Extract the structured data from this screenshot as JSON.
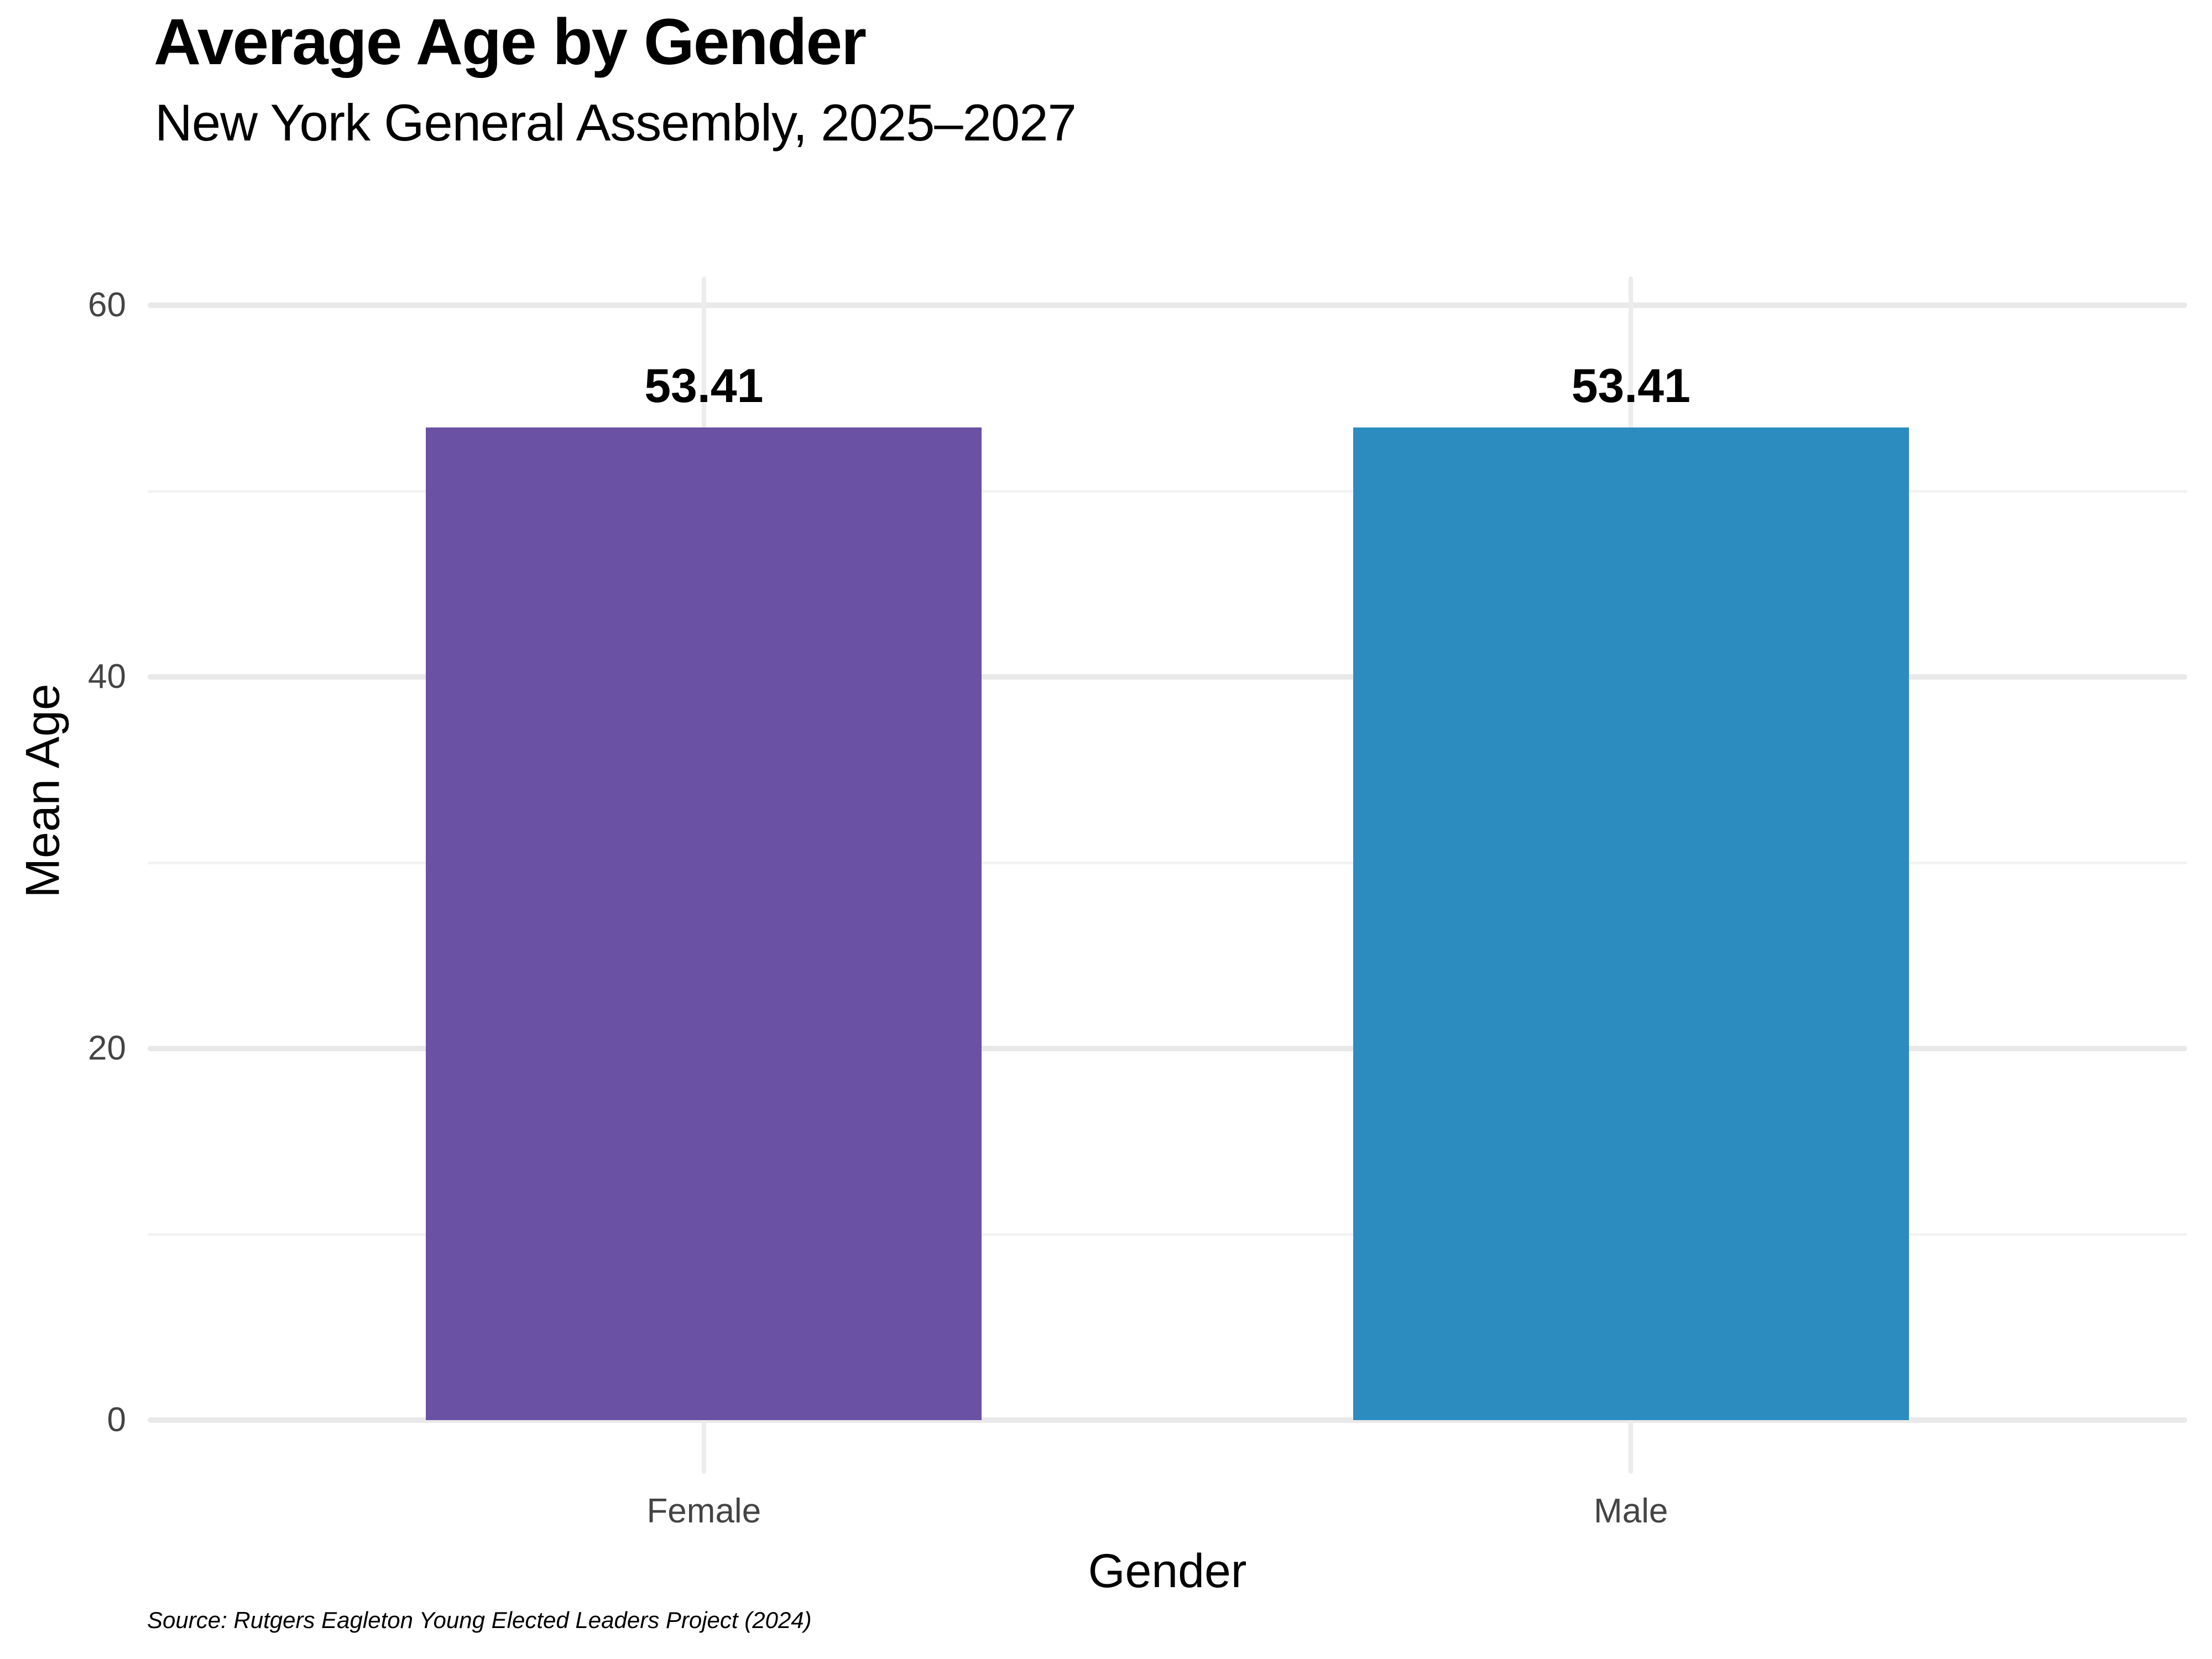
{
  "chart_data": {
    "type": "bar",
    "title": "Average Age by Gender",
    "subtitle": "New York General Assembly, 2025–2027",
    "xlabel": "Gender",
    "ylabel": "Mean Age",
    "caption": "Source: Rutgers Eagleton Young Elected Leaders Project (2024)",
    "categories": [
      "Female",
      "Male"
    ],
    "values": [
      53.41,
      53.41
    ],
    "value_labels": [
      "53.41",
      "53.41"
    ],
    "bar_colors": [
      "#6A51A4",
      "#2C8CBF"
    ],
    "yticks": [
      0,
      20,
      40,
      60
    ],
    "ytick_labels": [
      "0",
      "20",
      "40",
      "60"
    ],
    "ylim": [
      0,
      60
    ],
    "legend": "none",
    "grid": "horizontal major and minor gridlines, vertical gridline per category, light grey on white"
  },
  "colors": {
    "female_bar": "#6A51A4",
    "male_bar": "#2C8CBF",
    "grid_major": "#E9E9E9",
    "grid_minor": "#F3F3F3",
    "grid_vertical": "#ECECEC",
    "axis_text": "#444444",
    "text": "#000000",
    "background": "#FFFFFF"
  }
}
